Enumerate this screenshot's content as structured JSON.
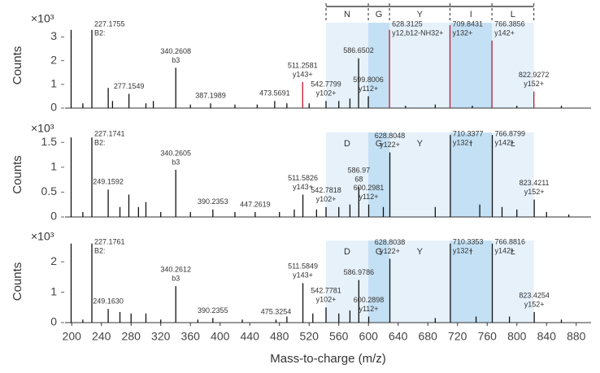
{
  "chart_data": [
    {
      "type": "stem",
      "ylabel": "Counts",
      "yscale_label": "×10³",
      "xlim": [
        191,
        900
      ],
      "ylim": [
        0,
        3.6
      ],
      "yticks": [
        0,
        1,
        2,
        3
      ],
      "residues": [
        "N",
        "G",
        "Y",
        "I",
        "L"
      ],
      "boundaries": [
        542.78,
        599.8,
        628.31,
        709.84,
        766.39,
        822.93
      ],
      "highlight": [
        [
          599.8,
          628.31
        ],
        [
          709.84,
          766.39
        ]
      ],
      "bracket": true,
      "x": [
        199.2,
        215,
        227.18,
        249.2,
        255,
        277.15,
        300,
        310,
        340.26,
        360,
        387.2,
        420,
        450,
        473.57,
        490,
        511.26,
        520,
        542.78,
        560,
        575,
        586.65,
        599.8,
        628.31,
        650,
        690,
        709.84,
        740,
        766.39,
        800,
        822.93,
        860
      ],
      "values": [
        3.3,
        0.2,
        3.3,
        0.85,
        0.3,
        0.6,
        0.2,
        0.3,
        1.7,
        0.15,
        0.2,
        0.15,
        0.15,
        0.3,
        0.2,
        1.1,
        0.2,
        0.3,
        0.3,
        0.4,
        2.1,
        0.5,
        3.3,
        0.1,
        0.15,
        3.5,
        0.1,
        2.85,
        0.1,
        0.7,
        0.1
      ],
      "colors": [
        "#111",
        "#111",
        "#111",
        "#111",
        "#111",
        "#111",
        "#111",
        "#111",
        "#111",
        "#111",
        "#111",
        "#111",
        "#111",
        "#111",
        "#111",
        "#c0182b",
        "#111",
        "#111",
        "#111",
        "#111",
        "#111",
        "#111",
        "#c0182b",
        "#111",
        "#111",
        "#c0182b",
        "#111",
        "#c0182b",
        "#111",
        "#c0182b",
        "#111"
      ],
      "peak_labels": [
        null,
        null,
        [
          "227.1755",
          "B2:"
        ],
        null,
        null,
        [
          "277.1549"
        ],
        null,
        null,
        [
          "340.2608",
          "b3"
        ],
        null,
        [
          "387.1989"
        ],
        null,
        null,
        [
          "473.5691"
        ],
        null,
        [
          "511.2581",
          "y143+"
        ],
        null,
        [
          "542.7799",
          "y102+"
        ],
        null,
        null,
        [
          "586.6502"
        ],
        [
          "599.8006",
          "y112+"
        ],
        [
          "628.3125",
          "y12,b12-NH32+"
        ],
        null,
        null,
        [
          "709.8431",
          "y132+"
        ],
        null,
        [
          "766.3856",
          "y142+"
        ],
        null,
        [
          "822.9272",
          "y152+"
        ],
        null
      ],
      "label_colors": [
        null,
        null,
        "#3b4f9a",
        null,
        null,
        "#222",
        null,
        null,
        "#3b4f9a",
        null,
        "#222",
        null,
        null,
        "#222",
        null,
        "#c0542b",
        null,
        "#c0542b",
        null,
        null,
        "#222",
        "#c0542b",
        "#7a2e8e",
        null,
        null,
        "#c0542b",
        null,
        "#c0542b",
        null,
        "#c0542b",
        null
      ]
    },
    {
      "type": "stem",
      "ylabel": "Counts",
      "yscale_label": "×10³",
      "xlim": [
        191,
        900
      ],
      "ylim": [
        0,
        1.7
      ],
      "yticks": [
        0,
        0.5,
        1,
        1.5
      ],
      "residues": [
        "D",
        "G",
        "Y",
        "I",
        "L"
      ],
      "boundaries": [
        542.78,
        599.8,
        628.31,
        709.84,
        766.39,
        822.93
      ],
      "highlight": [
        [
          599.8,
          628.31
        ],
        [
          709.84,
          766.39
        ]
      ],
      "bracket": false,
      "x": [
        199.2,
        215,
        227.17,
        249.16,
        265,
        277,
        290,
        300,
        320,
        340.26,
        360,
        390.24,
        420,
        447.26,
        480,
        500,
        511.58,
        530,
        542.78,
        560,
        575,
        586.97,
        600.3,
        620,
        628.8,
        690,
        710.34,
        750,
        766.88,
        780,
        800,
        823.42,
        840,
        870
      ],
      "values": [
        1.6,
        0.1,
        1.6,
        0.55,
        0.2,
        0.45,
        0.2,
        0.3,
        0.1,
        0.95,
        0.1,
        0.15,
        0.1,
        0.1,
        0.1,
        0.15,
        0.45,
        0.15,
        0.2,
        0.2,
        0.25,
        0.6,
        0.25,
        0.2,
        1.3,
        0.2,
        1.65,
        0.25,
        1.65,
        0.2,
        0.15,
        0.35,
        0.1,
        0.05
      ],
      "colors": [
        "#111",
        "#111",
        "#111",
        "#111",
        "#111",
        "#111",
        "#111",
        "#111",
        "#111",
        "#111",
        "#111",
        "#111",
        "#111",
        "#111",
        "#111",
        "#111",
        "#111",
        "#111",
        "#111",
        "#111",
        "#111",
        "#111",
        "#111",
        "#111",
        "#111",
        "#111",
        "#111",
        "#111",
        "#111",
        "#111",
        "#111",
        "#111",
        "#111",
        "#111"
      ],
      "peak_labels": [
        null,
        null,
        [
          "227.1741",
          "B2:"
        ],
        [
          "249.1592"
        ],
        null,
        null,
        null,
        null,
        null,
        [
          "340.2605",
          "b3"
        ],
        null,
        [
          "390.2353"
        ],
        null,
        [
          "447.2619"
        ],
        null,
        null,
        [
          "511.5826",
          "y143+"
        ],
        null,
        [
          "542.7818",
          "y102+"
        ],
        null,
        null,
        [
          "586.97",
          "68"
        ],
        [
          "600.2981",
          "y112+"
        ],
        null,
        [
          "628.8048",
          "y122+"
        ],
        null,
        [
          "710.3377",
          "y132+"
        ],
        null,
        [
          "766.8799",
          "y142+"
        ],
        null,
        null,
        [
          "823.4211",
          "y152+"
        ],
        null,
        null
      ],
      "label_colors": [
        null,
        null,
        "#3b4f9a",
        "#222",
        null,
        null,
        null,
        null,
        null,
        "#3b4f9a",
        null,
        "#222",
        null,
        "#222",
        null,
        null,
        "#c0542b",
        null,
        "#c0542b",
        null,
        null,
        "#222",
        "#c0542b",
        null,
        "#c0542b",
        null,
        "#c0542b",
        null,
        "#c0542b",
        null,
        null,
        "#c0542b",
        null,
        null
      ]
    },
    {
      "type": "stem",
      "ylabel": "Counts",
      "yscale_label": "×10³",
      "xlabel": "Mass-to-charge (m/z)",
      "xlim": [
        191,
        900
      ],
      "ylim": [
        0,
        2.7
      ],
      "yticks": [
        0,
        1,
        2
      ],
      "xticks": [
        200,
        240,
        280,
        320,
        360,
        400,
        440,
        480,
        520,
        560,
        600,
        640,
        680,
        720,
        760,
        800,
        840,
        880
      ],
      "residues": [
        "D",
        "G",
        "Y",
        "I",
        "L"
      ],
      "boundaries": [
        542.78,
        599.8,
        628.31,
        709.84,
        766.39,
        822.93
      ],
      "highlight": [
        [
          599.8,
          628.31
        ],
        [
          709.84,
          766.39
        ]
      ],
      "bracket": false,
      "x": [
        199.2,
        215,
        227.18,
        249.16,
        265,
        280,
        300,
        320,
        340.26,
        370,
        390.24,
        430,
        475.33,
        490,
        511.58,
        525,
        542.78,
        560,
        575,
        586.98,
        600.29,
        628.8,
        690,
        710.34,
        745,
        766.88,
        790,
        823.43,
        860
      ],
      "values": [
        2.6,
        0.1,
        2.6,
        0.45,
        0.35,
        0.3,
        0.3,
        0.1,
        1.2,
        0.1,
        0.15,
        0.1,
        0.1,
        0.2,
        1.3,
        0.3,
        0.5,
        0.3,
        0.4,
        1.4,
        0.2,
        2.1,
        0.15,
        2.6,
        0.2,
        2.6,
        0.2,
        0.35,
        0.1
      ],
      "colors": [
        "#111",
        "#111",
        "#111",
        "#111",
        "#111",
        "#111",
        "#111",
        "#111",
        "#111",
        "#111",
        "#111",
        "#111",
        "#111",
        "#111",
        "#111",
        "#111",
        "#111",
        "#111",
        "#111",
        "#111",
        "#111",
        "#111",
        "#111",
        "#111",
        "#111",
        "#111",
        "#111",
        "#111",
        "#111"
      ],
      "peak_labels": [
        null,
        null,
        [
          "227.1761",
          "B2:"
        ],
        [
          "249.1630"
        ],
        null,
        null,
        null,
        null,
        [
          "340.2612",
          "b3"
        ],
        null,
        [
          "390.2355"
        ],
        null,
        [
          "475.3254"
        ],
        null,
        [
          "511.5849",
          "y143+"
        ],
        null,
        [
          "542.7781",
          "y102+"
        ],
        null,
        null,
        [
          "586.9786"
        ],
        [
          "600.2898",
          "y112+"
        ],
        [
          "628.8038",
          "y122+"
        ],
        null,
        [
          "710.3353",
          "y132+"
        ],
        null,
        [
          "766.8816",
          "y142+"
        ],
        null,
        [
          "823.4254",
          "y152+"
        ],
        null
      ],
      "label_colors": [
        null,
        null,
        "#3b4f9a",
        "#222",
        null,
        null,
        null,
        null,
        "#3b4f9a",
        null,
        "#222",
        null,
        "#222",
        null,
        "#c0542b",
        null,
        "#c0542b",
        null,
        null,
        "#222",
        "#c0542b",
        "#c0542b",
        null,
        "#c0542b",
        null,
        "#c0542b",
        null,
        "#c0542b",
        null
      ]
    }
  ]
}
